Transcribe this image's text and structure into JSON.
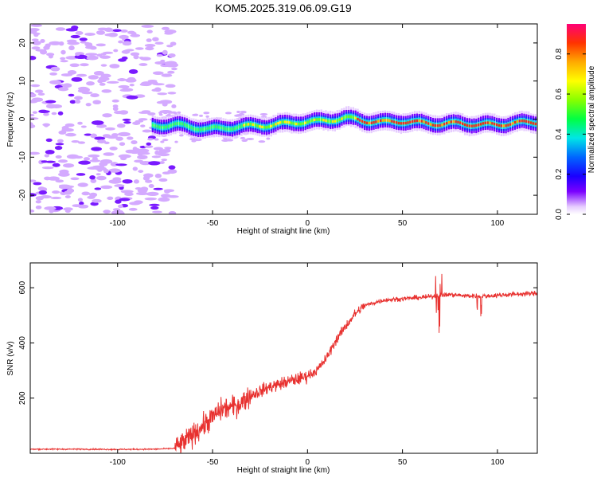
{
  "title": "KOM5.2025.319.06.09.G19",
  "chart_data": [
    {
      "type": "heatmap",
      "name": "spectrogram",
      "xlabel": "Height of straight line (km)",
      "ylabel": "Frequency (Hz)",
      "xlim": [
        -146,
        121
      ],
      "ylim": [
        -25,
        25
      ],
      "xticks": [
        -100,
        -50,
        0,
        50,
        100
      ],
      "yticks": [
        -20,
        -10,
        0,
        10,
        20
      ],
      "colorbar": {
        "label": "Normalized spectral amplitude",
        "range": [
          0,
          0.95
        ],
        "ticks": [
          0.0,
          0.2,
          0.4,
          0.6,
          0.8
        ]
      },
      "ridge": [
        {
          "x": -82,
          "y": -1.8
        },
        {
          "x": -70,
          "y": -1.5
        },
        {
          "x": -60,
          "y": -2.2
        },
        {
          "x": -52,
          "y": -2.6
        },
        {
          "x": -45,
          "y": -2.4
        },
        {
          "x": -38,
          "y": -2.0
        },
        {
          "x": -30,
          "y": -1.8
        },
        {
          "x": -20,
          "y": -1.6
        },
        {
          "x": -12,
          "y": -1.2
        },
        {
          "x": -5,
          "y": -0.8
        },
        {
          "x": 5,
          "y": -0.6
        },
        {
          "x": 12,
          "y": -0.2
        },
        {
          "x": 20,
          "y": 0.3
        },
        {
          "x": 30,
          "y": -0.5
        },
        {
          "x": 40,
          "y": -0.8
        },
        {
          "x": 50,
          "y": -0.6
        },
        {
          "x": 60,
          "y": -1.0
        },
        {
          "x": 70,
          "y": -1.3
        },
        {
          "x": 80,
          "y": -1.1
        },
        {
          "x": 90,
          "y": -1.5
        },
        {
          "x": 100,
          "y": -1.4
        },
        {
          "x": 110,
          "y": -1.0
        },
        {
          "x": 121,
          "y": -0.8
        }
      ]
    },
    {
      "type": "line",
      "name": "snr",
      "xlabel": "Height of straight line (km)",
      "ylabel": "SNR (v/v)",
      "xlim": [
        -146,
        121
      ],
      "ylim": [
        0,
        690
      ],
      "xticks": [
        -100,
        -50,
        0,
        50,
        100
      ],
      "yticks": [
        200,
        400,
        600
      ],
      "color": "#e8312f",
      "series": [
        {
          "x": -146,
          "y": 15
        },
        {
          "x": -120,
          "y": 15
        },
        {
          "x": -100,
          "y": 14
        },
        {
          "x": -80,
          "y": 15
        },
        {
          "x": -70,
          "y": 18
        },
        {
          "x": -65,
          "y": 40
        },
        {
          "x": -55,
          "y": 100
        },
        {
          "x": -45,
          "y": 160
        },
        {
          "x": -38,
          "y": 170
        },
        {
          "x": -30,
          "y": 210
        },
        {
          "x": -20,
          "y": 240
        },
        {
          "x": -10,
          "y": 260
        },
        {
          "x": -2,
          "y": 275
        },
        {
          "x": 5,
          "y": 300
        },
        {
          "x": 10,
          "y": 345
        },
        {
          "x": 15,
          "y": 410
        },
        {
          "x": 20,
          "y": 460
        },
        {
          "x": 25,
          "y": 505
        },
        {
          "x": 30,
          "y": 535
        },
        {
          "x": 40,
          "y": 555
        },
        {
          "x": 50,
          "y": 560
        },
        {
          "x": 60,
          "y": 565
        },
        {
          "x": 68,
          "y": 570
        },
        {
          "x": 75,
          "y": 575
        },
        {
          "x": 85,
          "y": 570
        },
        {
          "x": 95,
          "y": 570
        },
        {
          "x": 105,
          "y": 575
        },
        {
          "x": 121,
          "y": 580
        }
      ]
    }
  ]
}
